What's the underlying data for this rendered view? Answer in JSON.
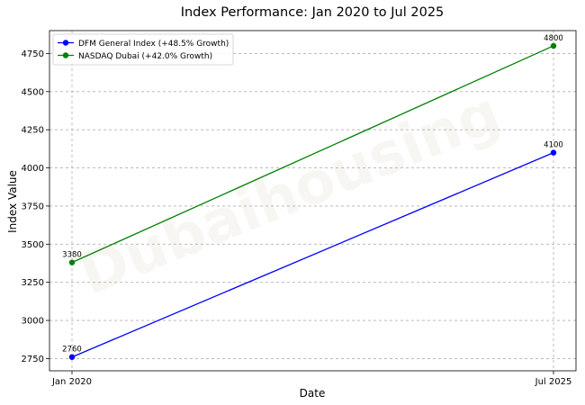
{
  "chart_data": {
    "type": "line",
    "title": "Index Performance: Jan 2020 to Jul 2025",
    "xlabel": "Date",
    "ylabel": "Index Value",
    "categories": [
      "Jan 2020",
      "Jul 2025"
    ],
    "ylim": [
      2670,
      4900
    ],
    "yticks": [
      2750,
      3000,
      3250,
      3500,
      3750,
      4000,
      4250,
      4500,
      4750
    ],
    "grid": true,
    "legend_position": "top-left",
    "watermark": "Dubaihousing",
    "series": [
      {
        "name": "DFM General Index (+48.5% Growth)",
        "color": "#0000ff",
        "values": [
          2760,
          4100
        ]
      },
      {
        "name": "NASDAQ Dubai (+42.0% Growth)",
        "color": "#008000",
        "values": [
          3380,
          4800
        ]
      }
    ]
  }
}
